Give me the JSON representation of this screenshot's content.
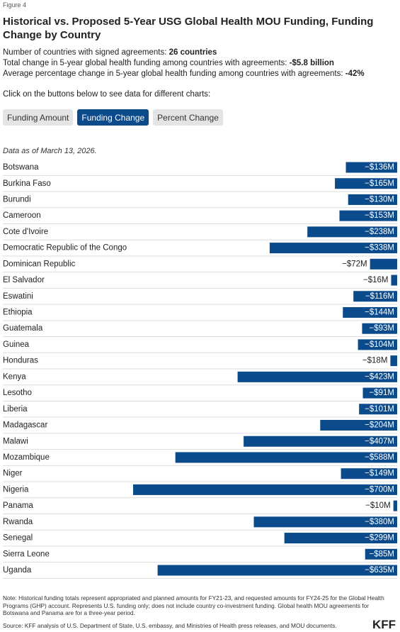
{
  "figure_label": "Figure 4",
  "summary": [
    {
      "label": "Number of countries with signed agreements: ",
      "value": "26 countries"
    },
    {
      "label": "Total change in 5-year global health funding among countries with agreements: ",
      "value": "-$5.8 billion"
    },
    {
      "label": "Average percentage change in 5-year global health funding among countries with agreements: ",
      "value": "-42%"
    }
  ],
  "instruction": "Click on the buttons below to see data for different charts:",
  "buttons": [
    "Funding Amount",
    "Funding Change",
    "Percent Change"
  ],
  "selected_button": 1,
  "data_note": "Data as of March 13, 2026.",
  "chart_data": {
    "type": "bar",
    "orientation": "horizontal",
    "title": "Historical vs. Proposed 5-Year USG Global Health MOU Funding, Funding Change by Country",
    "categories": [
      "Botswana",
      "Burkina Faso",
      "Burundi",
      "Cameroon",
      "Cote d'Ivoire",
      "Democratic Republic of the Congo",
      "Dominican Republic",
      "El Salvador",
      "Eswatini",
      "Ethiopia",
      "Guatemala",
      "Guinea",
      "Honduras",
      "Kenya",
      "Lesotho",
      "Liberia",
      "Madagascar",
      "Malawi",
      "Mozambique",
      "Niger",
      "Nigeria",
      "Panama",
      "Rwanda",
      "Senegal",
      "Sierra Leone",
      "Uganda"
    ],
    "values": [
      -136,
      -165,
      -130,
      -153,
      -238,
      -338,
      -72,
      -16,
      -116,
      -144,
      -93,
      -104,
      -18,
      -423,
      -91,
      -101,
      -204,
      -407,
      -588,
      -149,
      -700,
      -10,
      -380,
      -299,
      -85,
      -635
    ],
    "value_labels": [
      "−$136M",
      "−$165M",
      "−$130M",
      "−$153M",
      "−$238M",
      "−$338M",
      "−$72M",
      "−$16M",
      "−$116M",
      "−$144M",
      "−$93M",
      "−$104M",
      "−$18M",
      "−$423M",
      "−$91M",
      "−$101M",
      "−$204M",
      "−$407M",
      "−$588M",
      "−$149M",
      "−$700M",
      "−$10M",
      "−$380M",
      "−$299M",
      "−$85M",
      "−$635M"
    ],
    "color": "#0b4a8b"
  },
  "note": "Note: Historical funding totals represent appropriated and planned amounts for FY21-23, and requested amounts for FY24-25 for the Global Health Programs (GHP) account. Represents U.S. funding only; does not include country co-investment funding. Global health MOU agreements for Botswana and Panama are for a three-year period.",
  "source": "Source: KFF analysis of U.S. Department of State, U.S. embassy, and Ministries of Health press releases, and MOU documents.",
  "logo": "KFF"
}
